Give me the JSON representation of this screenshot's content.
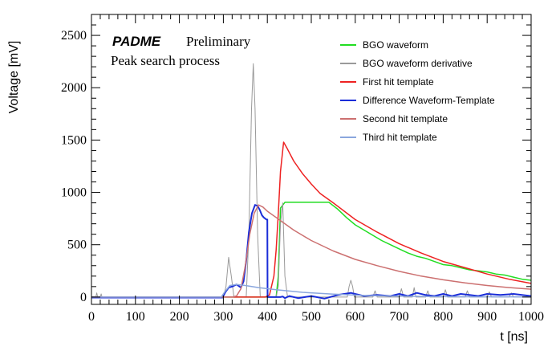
{
  "chart_data": {
    "type": "line",
    "title": "",
    "xlabel": "t [ns]",
    "ylabel": "Voltage [mV]",
    "xlim": [
      0,
      1000
    ],
    "ylim": [
      -70,
      2700
    ],
    "grid": false,
    "legend_position": "top-right",
    "x_ticks": [
      0,
      100,
      200,
      300,
      400,
      500,
      600,
      700,
      800,
      900,
      1000
    ],
    "y_ticks": [
      0,
      500,
      1000,
      1500,
      2000,
      2500
    ],
    "annotations": {
      "experiment": "PADME",
      "status": "Preliminary",
      "subtitle": "Peak search process"
    },
    "series": [
      {
        "name": "BGO waveform",
        "color": "#22dd22",
        "width": 1.5,
        "x": [
          0,
          300,
          350,
          365,
          380,
          390,
          400,
          405,
          410,
          415,
          420,
          425,
          430,
          440,
          460,
          500,
          540,
          560,
          580,
          600,
          620,
          640,
          660,
          680,
          700,
          720,
          740,
          760,
          780,
          800,
          820,
          840,
          860,
          880,
          900,
          920,
          940,
          960,
          980,
          1000
        ],
        "y": [
          0,
          0,
          0,
          0,
          0,
          0,
          0,
          0,
          0,
          0,
          0,
          200,
          850,
          905,
          905,
          905,
          905,
          840,
          760,
          690,
          640,
          590,
          540,
          500,
          460,
          420,
          390,
          370,
          340,
          310,
          300,
          280,
          260,
          250,
          240,
          220,
          210,
          190,
          170,
          160
        ]
      },
      {
        "name": "BGO waveform derivative",
        "color": "#9a9a9a",
        "width": 1,
        "x": [
          0,
          10,
          12,
          14,
          20,
          22,
          24,
          300,
          306,
          312,
          318,
          324,
          352,
          358,
          364,
          368,
          372,
          378,
          384,
          400,
          420,
          425,
          430,
          435,
          440,
          446,
          460,
          582,
          586,
          590,
          594,
          598,
          640,
          645,
          650,
          700,
          705,
          710,
          730,
          734,
          738,
          760,
          765,
          770,
          800,
          805,
          810,
          850,
          855,
          860,
          900,
          905,
          910,
          950,
          955,
          960,
          1000
        ],
        "y": [
          0,
          0,
          40,
          0,
          0,
          30,
          0,
          0,
          100,
          380,
          200,
          0,
          0,
          600,
          1800,
          2230,
          1800,
          600,
          0,
          0,
          0,
          100,
          700,
          900,
          200,
          0,
          0,
          0,
          100,
          160,
          100,
          0,
          0,
          60,
          0,
          0,
          80,
          0,
          0,
          90,
          0,
          0,
          60,
          0,
          0,
          70,
          0,
          0,
          60,
          0,
          0,
          50,
          0,
          0,
          40,
          0,
          0
        ]
      },
      {
        "name": "First hit template",
        "color": "#ee2222",
        "width": 1.5,
        "x": [
          0,
          395,
          405,
          415,
          420,
          425,
          430,
          437,
          445,
          460,
          480,
          500,
          520,
          550,
          600,
          650,
          700,
          750,
          800,
          850,
          900,
          950,
          1000
        ],
        "y": [
          0,
          0,
          20,
          200,
          450,
          800,
          1200,
          1480,
          1420,
          1300,
          1180,
          1080,
          990,
          900,
          740,
          620,
          510,
          420,
          340,
          280,
          220,
          170,
          130
        ]
      },
      {
        "name": "Difference Waveform-Template",
        "color": "#1a2dd8",
        "width": 2,
        "x": [
          0,
          298,
          305,
          312,
          320,
          330,
          340,
          346,
          352,
          358,
          365,
          372,
          378,
          383,
          388,
          392,
          398,
          400,
          400.5,
          405,
          410,
          415,
          420,
          425,
          430,
          435,
          440,
          450,
          470,
          500,
          530,
          560,
          590,
          620,
          650,
          680,
          700,
          720,
          740,
          760,
          780,
          800,
          820,
          840,
          860,
          880,
          900,
          930,
          960,
          1000
        ],
        "y": [
          -5,
          -5,
          50,
          90,
          100,
          120,
          90,
          150,
          350,
          620,
          800,
          880,
          870,
          830,
          780,
          760,
          740,
          740,
          0,
          0,
          0,
          0,
          0,
          0,
          0,
          5,
          -10,
          10,
          -10,
          10,
          -15,
          20,
          40,
          10,
          20,
          10,
          30,
          10,
          40,
          20,
          10,
          30,
          10,
          30,
          20,
          10,
          30,
          20,
          30,
          10
        ]
      },
      {
        "name": "Second hit template",
        "color": "#cc7070",
        "width": 1.5,
        "x": [
          0,
          320,
          330,
          340,
          350,
          360,
          370,
          380,
          390,
          400,
          420,
          440,
          460,
          480,
          500,
          550,
          600,
          650,
          700,
          750,
          800,
          850,
          900,
          950,
          1000
        ],
        "y": [
          0,
          0,
          10,
          80,
          300,
          600,
          800,
          880,
          860,
          820,
          760,
          700,
          640,
          590,
          540,
          440,
          360,
          300,
          245,
          200,
          165,
          135,
          110,
          90,
          75
        ]
      },
      {
        "name": "Third hit template",
        "color": "#8aa6dd",
        "width": 1.5,
        "x": [
          0,
          295,
          305,
          315,
          330,
          350,
          380,
          420,
          480,
          550,
          620,
          700,
          800,
          900,
          1000
        ],
        "y": [
          0,
          0,
          60,
          110,
          120,
          110,
          90,
          70,
          45,
          28,
          15,
          8,
          4,
          2,
          1
        ]
      }
    ]
  }
}
